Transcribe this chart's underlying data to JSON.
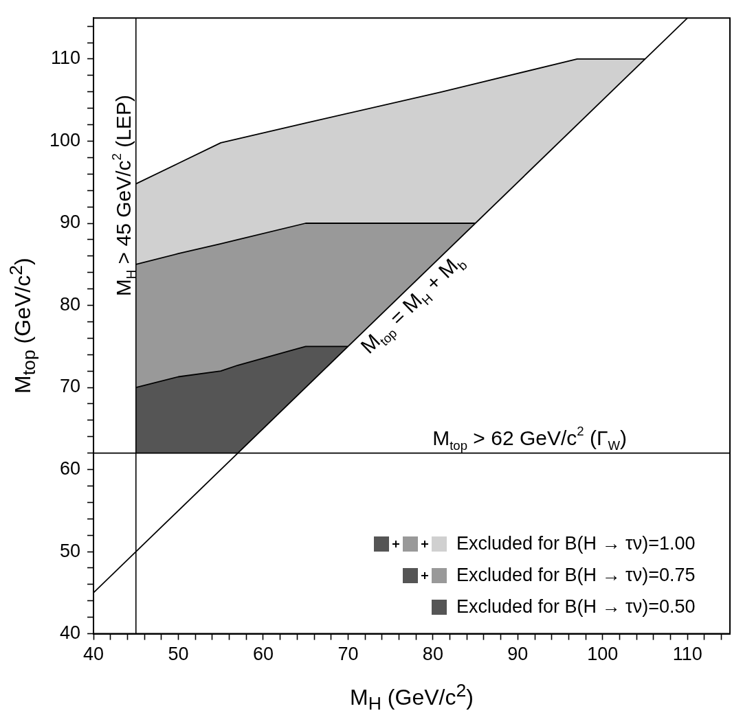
{
  "chart_data": {
    "type": "area",
    "xlabel": "M$_{H}$  (GeV/c$^{2}$)",
    "ylabel": "M$_{top}$  (GeV/c$^{2}$)",
    "xlim": [
      40,
      115
    ],
    "ylim": [
      40,
      115
    ],
    "xticks": [
      40,
      {
        "value": 42,
        "label": null
      },
      {
        "value": 44,
        "label": null
      },
      {
        "value": 46,
        "label": null
      },
      {
        "value": 48,
        "label": null
      },
      50,
      {
        "value": 52,
        "label": null
      },
      {
        "value": 54,
        "label": null
      },
      {
        "value": 56,
        "label": null
      },
      {
        "value": 58,
        "label": null
      },
      60,
      {
        "value": 62,
        "label": null
      },
      {
        "value": 64,
        "label": null
      },
      {
        "value": 66,
        "label": null
      },
      {
        "value": 68,
        "label": null
      },
      70,
      {
        "value": 72,
        "label": null
      },
      {
        "value": 74,
        "label": null
      },
      {
        "value": 76,
        "label": null
      },
      {
        "value": 78,
        "label": null
      },
      80,
      {
        "value": 82,
        "label": null
      },
      {
        "value": 84,
        "label": null
      },
      {
        "value": 86,
        "label": null
      },
      {
        "value": 88,
        "label": null
      },
      90,
      {
        "value": 92,
        "label": null
      },
      {
        "value": 94,
        "label": null
      },
      {
        "value": 96,
        "label": null
      },
      {
        "value": 98,
        "label": null
      },
      100,
      {
        "value": 102,
        "label": null
      },
      {
        "value": 104,
        "label": null
      },
      {
        "value": 106,
        "label": null
      },
      {
        "value": 108,
        "label": null
      },
      110,
      {
        "value": 112,
        "label": null
      },
      {
        "value": 114,
        "label": null
      }
    ],
    "yticks": [
      40,
      {
        "value": 42,
        "label": null
      },
      {
        "value": 44,
        "label": null
      },
      {
        "value": 46,
        "label": null
      },
      {
        "value": 48,
        "label": null
      },
      50,
      {
        "value": 52,
        "label": null
      },
      {
        "value": 54,
        "label": null
      },
      {
        "value": 56,
        "label": null
      },
      {
        "value": 58,
        "label": null
      },
      60,
      {
        "value": 62,
        "label": null
      },
      {
        "value": 64,
        "label": null
      },
      {
        "value": 66,
        "label": null
      },
      {
        "value": 68,
        "label": null
      },
      70,
      {
        "value": 72,
        "label": null
      },
      {
        "value": 74,
        "label": null
      },
      {
        "value": 76,
        "label": null
      },
      {
        "value": 78,
        "label": null
      },
      80,
      {
        "value": 82,
        "label": null
      },
      {
        "value": 84,
        "label": null
      },
      {
        "value": 86,
        "label": null
      },
      {
        "value": 88,
        "label": null
      },
      90,
      {
        "value": 92,
        "label": null
      },
      {
        "value": 94,
        "label": null
      },
      {
        "value": 96,
        "label": null
      },
      {
        "value": 98,
        "label": null
      },
      100,
      {
        "value": 102,
        "label": null
      },
      {
        "value": 104,
        "label": null
      },
      {
        "value": 106,
        "label": null
      },
      {
        "value": 108,
        "label": null
      },
      110,
      {
        "value": 112,
        "label": null
      },
      {
        "value": 114,
        "label": null
      }
    ],
    "grid": false,
    "legend": "bottom right",
    "marker": "none",
    "series": [
      {
        "name": "Excluded for B(H → τν)=1.00",
        "color": "#d0d0d0",
        "x": [
          45,
          50,
          55,
          65,
          81,
          85,
          97,
          105
        ],
        "values": [
          94.8,
          97.3,
          99.8,
          102.2,
          106,
          107,
          110,
          110
        ]
      },
      {
        "name": "Excluded for B(H → τν)=0.75",
        "color": "#999999",
        "x": [
          45,
          50,
          55,
          57,
          65,
          70,
          85
        ],
        "values": [
          85,
          86.3,
          87.5,
          88,
          90,
          90,
          90
        ]
      },
      {
        "name": "Excluded for B(H → τν)=0.50",
        "color": "#555555",
        "x": [
          45,
          50,
          55,
          57,
          65,
          70
        ],
        "values": [
          70,
          71.3,
          72,
          72.7,
          75,
          75
        ]
      },
      {
        "type": "line",
        "name": "M$_{top}$ = M$_{H}$ + M$_{b}$",
        "color": "#000000",
        "x": [
          40,
          110
        ],
        "values": [
          45,
          115
        ]
      }
    ],
    "ref_lines": [
      {
        "axis": "x",
        "value": 45,
        "label": "M$_{H}$ > 45 GeV/c$^{2}$ (LEP)",
        "color": "#000000"
      },
      {
        "axis": "y",
        "value": 62,
        "label": "M$_{top}$ > 62 GeV/c$^{2}$ (Γ$_{W}$)",
        "color": "#000000"
      }
    ]
  }
}
